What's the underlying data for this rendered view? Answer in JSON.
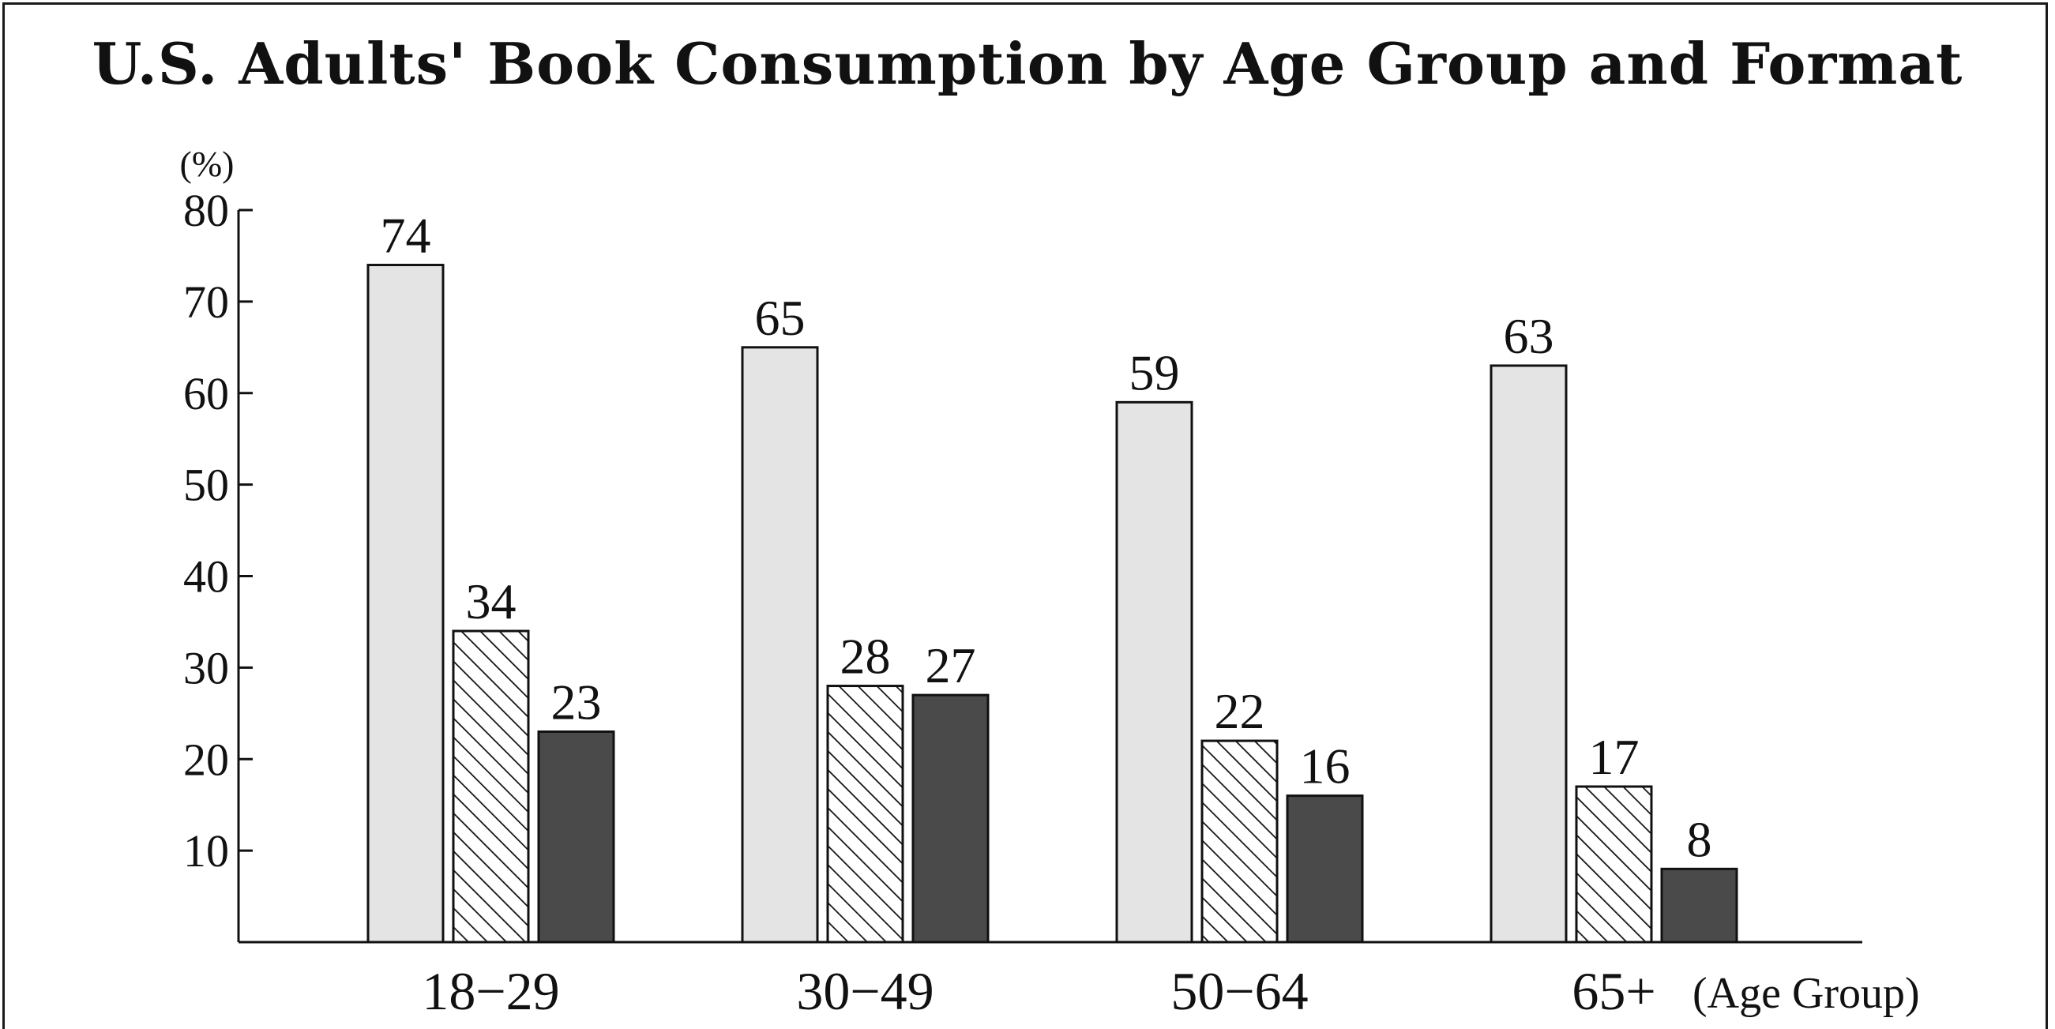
{
  "chart_data": {
    "type": "bar",
    "title": "U.S. Adults' Book Consumption by Age Group and Format",
    "xlabel": "(Age Group)",
    "ylabel": "(%)",
    "categories": [
      "18−29",
      "30−49",
      "50−64",
      "65+"
    ],
    "series": [
      {
        "values": [
          74,
          65,
          59,
          63
        ],
        "color": "#e4e4e4",
        "fill_style": "solid-light"
      },
      {
        "values": [
          34,
          28,
          22,
          17
        ],
        "color": "#ffffff",
        "fill_style": "diagonal-hatch"
      },
      {
        "values": [
          23,
          27,
          16,
          8
        ],
        "color": "#4a4a4a",
        "fill_style": "solid-dark"
      }
    ],
    "ylim": [
      0,
      80
    ],
    "yticks": [
      10,
      20,
      30,
      40,
      50,
      60,
      70,
      80
    ],
    "grid": false,
    "legend": "none"
  }
}
